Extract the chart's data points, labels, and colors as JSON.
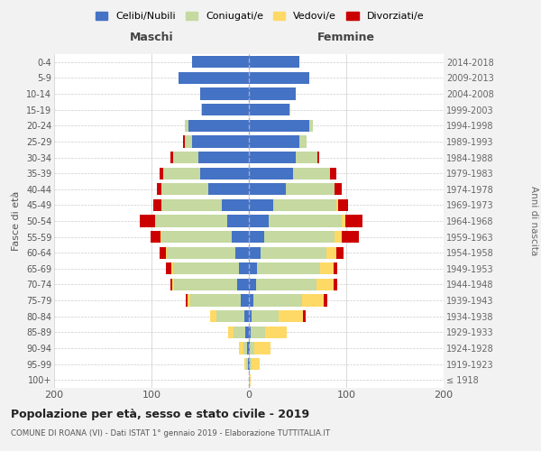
{
  "age_groups": [
    "100+",
    "95-99",
    "90-94",
    "85-89",
    "80-84",
    "75-79",
    "70-74",
    "65-69",
    "60-64",
    "55-59",
    "50-54",
    "45-49",
    "40-44",
    "35-39",
    "30-34",
    "25-29",
    "20-24",
    "15-19",
    "10-14",
    "5-9",
    "0-4"
  ],
  "birth_years": [
    "≤ 1918",
    "1919-1923",
    "1924-1928",
    "1929-1933",
    "1934-1938",
    "1939-1943",
    "1944-1948",
    "1949-1953",
    "1954-1958",
    "1959-1963",
    "1964-1968",
    "1969-1973",
    "1974-1978",
    "1979-1983",
    "1984-1988",
    "1989-1993",
    "1994-1998",
    "1999-2003",
    "2004-2008",
    "2009-2013",
    "2014-2018"
  ],
  "males": {
    "celibi": [
      0,
      1,
      2,
      4,
      5,
      8,
      12,
      10,
      14,
      18,
      22,
      28,
      42,
      50,
      52,
      58,
      62,
      48,
      50,
      72,
      58
    ],
    "coniugati": [
      0,
      2,
      4,
      12,
      28,
      52,
      65,
      68,
      70,
      72,
      74,
      62,
      48,
      38,
      26,
      8,
      4,
      1,
      0,
      0,
      0
    ],
    "vedovi": [
      0,
      2,
      4,
      5,
      7,
      3,
      2,
      2,
      1,
      1,
      0,
      0,
      0,
      0,
      0,
      0,
      0,
      0,
      0,
      0,
      0
    ],
    "divorziati": [
      0,
      0,
      0,
      0,
      0,
      2,
      2,
      5,
      7,
      10,
      16,
      8,
      4,
      4,
      3,
      2,
      0,
      0,
      0,
      0,
      0
    ]
  },
  "females": {
    "celibi": [
      0,
      1,
      1,
      2,
      3,
      5,
      7,
      8,
      12,
      16,
      20,
      25,
      38,
      45,
      48,
      52,
      62,
      42,
      48,
      62,
      52
    ],
    "coniugati": [
      0,
      2,
      5,
      15,
      28,
      50,
      62,
      65,
      68,
      72,
      75,
      65,
      50,
      38,
      22,
      7,
      4,
      1,
      0,
      0,
      0
    ],
    "vedovi": [
      2,
      8,
      16,
      22,
      25,
      22,
      18,
      14,
      10,
      7,
      4,
      2,
      0,
      0,
      0,
      0,
      0,
      0,
      0,
      0,
      0
    ],
    "divorziati": [
      0,
      0,
      0,
      0,
      2,
      4,
      4,
      4,
      7,
      18,
      18,
      10,
      7,
      7,
      2,
      0,
      0,
      0,
      0,
      0,
      0
    ]
  },
  "colors": {
    "celibi": "#4472C4",
    "coniugati": "#c5d9a0",
    "vedovi": "#ffd966",
    "divorziati": "#cc0000"
  },
  "xlim": 200,
  "title": "Popolazione per età, sesso e stato civile - 2019",
  "subtitle": "COMUNE DI ROANA (VI) - Dati ISTAT 1° gennaio 2019 - Elaborazione TUTTITALIA.IT",
  "ylabel": "Fasce di età",
  "right_label": "Anni di nascita",
  "maschi_label": "Maschi",
  "femmine_label": "Femmine",
  "legend_labels": [
    "Celibi/Nubili",
    "Coniugati/e",
    "Vedovi/e",
    "Divorziati/e"
  ],
  "bg_color": "#f2f2f2",
  "plot_bg": "#ffffff",
  "grid_color": "#cccccc"
}
